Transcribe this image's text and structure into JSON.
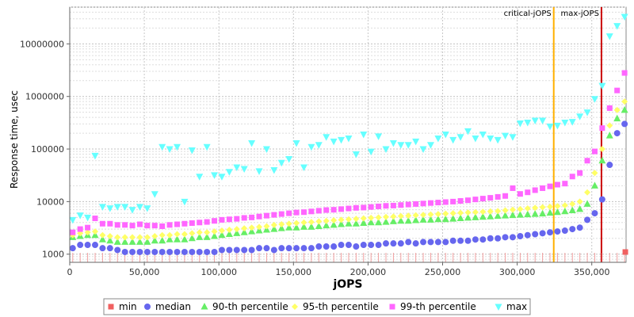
{
  "chart_data": {
    "type": "scatter",
    "title": "",
    "xlabel": "jOPS",
    "ylabel": "Response time, usec",
    "xlim": [
      0,
      373000
    ],
    "ylim": [
      700,
      50000000
    ],
    "y_scale": "log",
    "grid": true,
    "x_ticks": [
      {
        "value": 0,
        "label": "0"
      },
      {
        "value": 50000,
        "label": "50,000"
      },
      {
        "value": 100000,
        "label": "100,000"
      },
      {
        "value": 150000,
        "label": "150,000"
      },
      {
        "value": 200000,
        "label": "200,000"
      },
      {
        "value": 250000,
        "label": "250,000"
      },
      {
        "value": 300000,
        "label": "300,000"
      },
      {
        "value": 350000,
        "label": "350,000"
      }
    ],
    "y_ticks": [
      {
        "value": 1000,
        "label": "1000"
      },
      {
        "value": 10000,
        "label": "10000"
      },
      {
        "value": 100000,
        "label": "100000"
      },
      {
        "value": 1000000,
        "label": "1000000"
      },
      {
        "value": 10000000,
        "label": "10000000"
      }
    ],
    "legend_position": "bottom",
    "annotations": [
      {
        "label": "critical-jOPS",
        "x": 324500,
        "color": "#ffb000"
      },
      {
        "label": "max-jOPS",
        "x": 356500,
        "color": "#cc0000"
      }
    ],
    "series": [
      {
        "name": "min",
        "color": "#f06060",
        "marker": "square",
        "x": [
          372500
        ],
        "y": [
          1100
        ]
      },
      {
        "name": "median",
        "color": "#6666ee",
        "marker": "circle",
        "x": [
          2000,
          7000,
          12000,
          17000,
          22000,
          27000,
          32000,
          37000,
          42000,
          47000,
          52000,
          57000,
          62000,
          67000,
          72000,
          77000,
          82000,
          87000,
          92000,
          97000,
          102000,
          107000,
          112000,
          117000,
          122000,
          127000,
          132000,
          137000,
          142000,
          147000,
          152000,
          157000,
          162000,
          167000,
          172000,
          177000,
          182000,
          187000,
          192000,
          197000,
          202000,
          207000,
          212000,
          217000,
          222000,
          227000,
          232000,
          237000,
          242000,
          247000,
          252000,
          257000,
          262000,
          267000,
          272000,
          277000,
          282000,
          287000,
          292000,
          297000,
          302000,
          307000,
          312000,
          317000,
          322000,
          327000,
          332000,
          337000,
          342000,
          347000,
          352000,
          357000,
          362000,
          367000,
          372000
        ],
        "y": [
          1300,
          1500,
          1500,
          1500,
          1300,
          1300,
          1200,
          1100,
          1100,
          1100,
          1100,
          1100,
          1100,
          1100,
          1100,
          1100,
          1100,
          1100,
          1100,
          1100,
          1200,
          1200,
          1200,
          1200,
          1200,
          1300,
          1300,
          1200,
          1300,
          1300,
          1300,
          1300,
          1300,
          1400,
          1400,
          1400,
          1500,
          1500,
          1400,
          1500,
          1500,
          1500,
          1600,
          1600,
          1600,
          1700,
          1600,
          1700,
          1700,
          1700,
          1700,
          1800,
          1800,
          1800,
          1900,
          1900,
          2000,
          2000,
          2100,
          2100,
          2200,
          2300,
          2400,
          2500,
          2600,
          2700,
          2800,
          3000,
          3200,
          4500,
          6000,
          11000,
          50000,
          200000,
          300000
        ]
      },
      {
        "name": "90-th percentile",
        "color": "#66ee66",
        "marker": "triangle-up",
        "x": [
          2000,
          7000,
          12000,
          17000,
          22000,
          27000,
          32000,
          37000,
          42000,
          47000,
          52000,
          57000,
          62000,
          67000,
          72000,
          77000,
          82000,
          87000,
          92000,
          97000,
          102000,
          107000,
          112000,
          117000,
          122000,
          127000,
          132000,
          137000,
          142000,
          147000,
          152000,
          157000,
          162000,
          167000,
          172000,
          177000,
          182000,
          187000,
          192000,
          197000,
          202000,
          207000,
          212000,
          217000,
          222000,
          227000,
          232000,
          237000,
          242000,
          247000,
          252000,
          257000,
          262000,
          267000,
          272000,
          277000,
          282000,
          287000,
          292000,
          297000,
          302000,
          307000,
          312000,
          317000,
          322000,
          327000,
          332000,
          337000,
          342000,
          347000,
          352000,
          357000,
          362000,
          367000,
          372000
        ],
        "y": [
          2100,
          2200,
          2300,
          2300,
          1900,
          1800,
          1700,
          1700,
          1700,
          1700,
          1700,
          1800,
          1800,
          1900,
          1900,
          1900,
          2000,
          2100,
          2100,
          2200,
          2300,
          2400,
          2500,
          2600,
          2700,
          2800,
          2900,
          3000,
          3100,
          3200,
          3200,
          3300,
          3300,
          3400,
          3500,
          3600,
          3700,
          3800,
          3800,
          3900,
          4000,
          4000,
          4100,
          4200,
          4300,
          4300,
          4400,
          4500,
          4500,
          4600,
          4600,
          4700,
          4800,
          4900,
          5000,
          5100,
          5200,
          5300,
          5400,
          5500,
          5600,
          5700,
          5800,
          5900,
          6100,
          6300,
          6500,
          6800,
          7200,
          9000,
          20000,
          60000,
          180000,
          380000,
          550000
        ]
      },
      {
        "name": "95-th percentile",
        "color": "#ffff66",
        "marker": "diamond",
        "x": [
          2000,
          7000,
          12000,
          17000,
          22000,
          27000,
          32000,
          37000,
          42000,
          47000,
          52000,
          57000,
          62000,
          67000,
          72000,
          77000,
          82000,
          87000,
          92000,
          97000,
          102000,
          107000,
          112000,
          117000,
          122000,
          127000,
          132000,
          137000,
          142000,
          147000,
          152000,
          157000,
          162000,
          167000,
          172000,
          177000,
          182000,
          187000,
          192000,
          197000,
          202000,
          207000,
          212000,
          217000,
          222000,
          227000,
          232000,
          237000,
          242000,
          247000,
          252000,
          257000,
          262000,
          267000,
          272000,
          277000,
          282000,
          287000,
          292000,
          297000,
          302000,
          307000,
          312000,
          317000,
          322000,
          327000,
          332000,
          337000,
          342000,
          347000,
          352000,
          357000,
          362000,
          367000,
          372000
        ],
        "y": [
          2300,
          2500,
          2600,
          2700,
          2300,
          2200,
          2100,
          2100,
          2100,
          2100,
          2100,
          2200,
          2300,
          2300,
          2400,
          2400,
          2500,
          2600,
          2600,
          2700,
          2800,
          2900,
          3000,
          3100,
          3200,
          3300,
          3400,
          3600,
          3700,
          3800,
          3900,
          4000,
          4100,
          4200,
          4300,
          4400,
          4500,
          4600,
          4700,
          4800,
          4900,
          5000,
          5100,
          5200,
          5300,
          5400,
          5500,
          5600,
          5700,
          5800,
          5900,
          6000,
          6100,
          6200,
          6300,
          6400,
          6500,
          6600,
          6800,
          7000,
          7200,
          7400,
          7600,
          7800,
          8000,
          8200,
          8500,
          9000,
          10000,
          15000,
          35000,
          100000,
          280000,
          550000,
          800000
        ]
      },
      {
        "name": "99-th percentile",
        "color": "#ff66ff",
        "marker": "square",
        "x": [
          2000,
          7000,
          12000,
          17000,
          22000,
          27000,
          32000,
          37000,
          42000,
          47000,
          52000,
          57000,
          62000,
          67000,
          72000,
          77000,
          82000,
          87000,
          92000,
          97000,
          102000,
          107000,
          112000,
          117000,
          122000,
          127000,
          132000,
          137000,
          142000,
          147000,
          152000,
          157000,
          162000,
          167000,
          172000,
          177000,
          182000,
          187000,
          192000,
          197000,
          202000,
          207000,
          212000,
          217000,
          222000,
          227000,
          232000,
          237000,
          242000,
          247000,
          252000,
          257000,
          262000,
          267000,
          272000,
          277000,
          282000,
          287000,
          292000,
          297000,
          302000,
          307000,
          312000,
          317000,
          322000,
          327000,
          332000,
          337000,
          342000,
          347000,
          352000,
          357000,
          362000,
          367000,
          372000
        ],
        "y": [
          2600,
          3000,
          3200,
          4800,
          3800,
          3800,
          3600,
          3600,
          3500,
          3700,
          3500,
          3500,
          3400,
          3600,
          3700,
          3800,
          3900,
          4000,
          4100,
          4300,
          4500,
          4600,
          4700,
          4900,
          5000,
          5200,
          5400,
          5600,
          5800,
          6000,
          6200,
          6300,
          6500,
          6700,
          6900,
          7000,
          7200,
          7400,
          7600,
          7700,
          7900,
          8100,
          8300,
          8400,
          8600,
          8800,
          9000,
          9200,
          9400,
          9600,
          9800,
          10000,
          10300,
          10600,
          11000,
          11400,
          11800,
          12300,
          12800,
          18000,
          14000,
          15000,
          16500,
          18000,
          19500,
          21000,
          22000,
          30000,
          35000,
          60000,
          90000,
          250000,
          600000,
          1300000,
          2800000
        ]
      },
      {
        "name": "max",
        "color": "#66ffff",
        "marker": "triangle-down",
        "x": [
          2000,
          7000,
          12000,
          17000,
          22000,
          27000,
          32000,
          37000,
          42000,
          47000,
          52000,
          57000,
          62000,
          67000,
          72000,
          77000,
          82000,
          87000,
          92000,
          97000,
          102000,
          107000,
          112000,
          117000,
          122000,
          127000,
          132000,
          137000,
          142000,
          147000,
          152000,
          157000,
          162000,
          167000,
          172000,
          177000,
          182000,
          187000,
          192000,
          197000,
          202000,
          207000,
          212000,
          217000,
          222000,
          227000,
          232000,
          237000,
          242000,
          247000,
          252000,
          257000,
          262000,
          267000,
          272000,
          277000,
          282000,
          287000,
          292000,
          297000,
          302000,
          307000,
          312000,
          317000,
          322000,
          327000,
          332000,
          337000,
          342000,
          347000,
          352000,
          357000,
          362000,
          367000,
          372000
        ],
        "y": [
          4500,
          5500,
          5000,
          75000,
          8000,
          7500,
          8000,
          8000,
          7000,
          8000,
          7500,
          14000,
          110000,
          100000,
          110000,
          10000,
          95000,
          30000,
          110000,
          32000,
          30000,
          37000,
          45000,
          42000,
          130000,
          38000,
          100000,
          40000,
          55000,
          65000,
          130000,
          45000,
          110000,
          120000,
          170000,
          140000,
          150000,
          160000,
          80000,
          190000,
          90000,
          175000,
          100000,
          130000,
          120000,
          120000,
          140000,
          100000,
          120000,
          160000,
          190000,
          150000,
          170000,
          220000,
          160000,
          190000,
          160000,
          150000,
          180000,
          170000,
          310000,
          320000,
          350000,
          350000,
          270000,
          280000,
          320000,
          330000,
          420000,
          500000,
          900000,
          1600000,
          14000000,
          22000000,
          33000000
        ]
      }
    ]
  }
}
